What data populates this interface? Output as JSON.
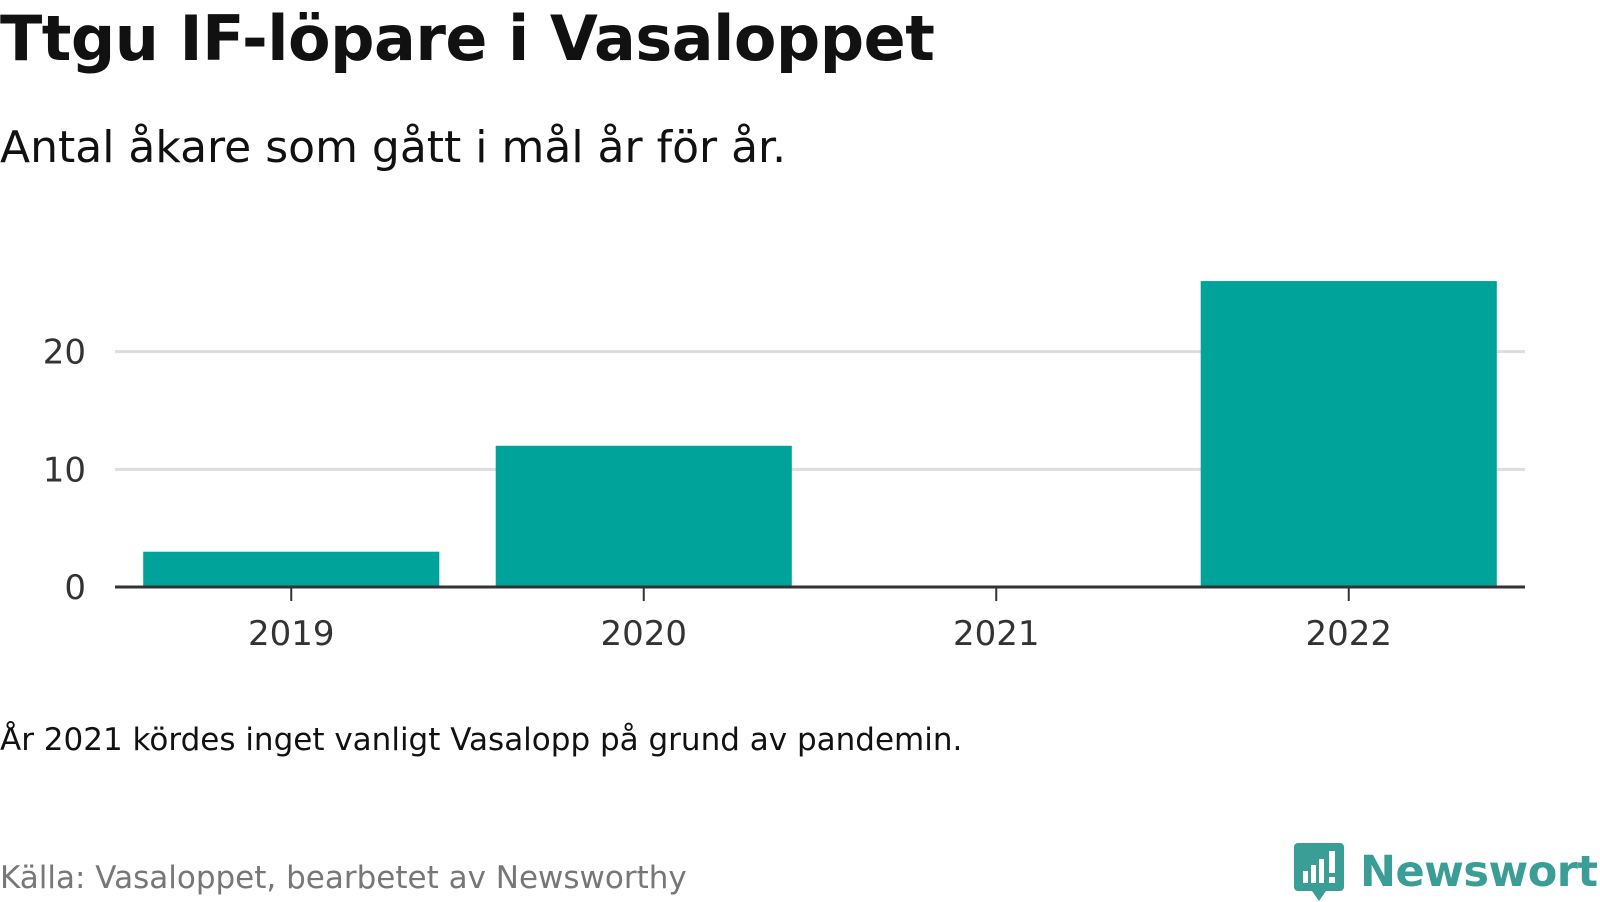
{
  "header": {
    "title": "Ttgu IF-löpare i Vasaloppet",
    "subtitle": "Antal åkare som gått i mål år för år."
  },
  "footer": {
    "note": "År 2021 kördes inget vanligt Vasalopp på grund av pandemin.",
    "source": "Källa: Vasaloppet, bearbetet av Newsworthy",
    "brand": "Newsworthy",
    "brand_icon": "newsworthy-chart-bubble-icon"
  },
  "colors": {
    "bar": "#00a39a",
    "grid": "#dddddd",
    "axis": "#333333",
    "brand": "#3a9e96",
    "source_text": "#777777"
  },
  "chart_data": {
    "type": "bar",
    "title": "Ttgu IF-löpare i Vasaloppet",
    "subtitle": "Antal åkare som gått i mål år för år.",
    "categories": [
      "2019",
      "2020",
      "2021",
      "2022"
    ],
    "values": [
      3,
      12,
      0,
      26
    ],
    "ylim": [
      0,
      30
    ],
    "yticks": [
      0,
      10,
      20
    ],
    "grid": true,
    "xlabel": "",
    "ylabel": ""
  }
}
